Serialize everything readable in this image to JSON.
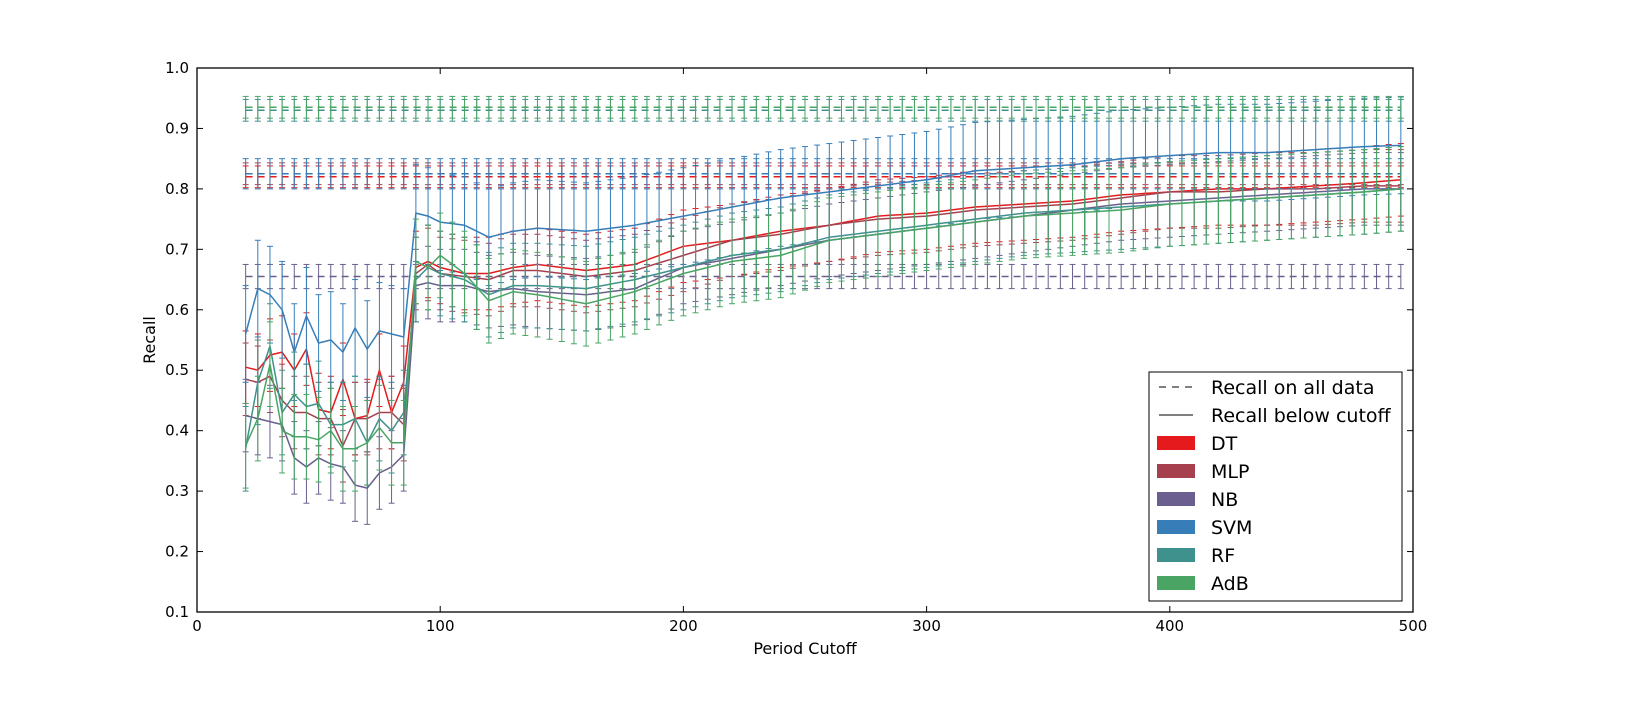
{
  "chart_data": {
    "type": "line",
    "title": "",
    "xlabel": "Period Cutoff",
    "ylabel": "Recall",
    "xlim": [
      0,
      500
    ],
    "ylim": [
      0.1,
      1.0
    ],
    "xticks": [
      "0",
      "100",
      "200",
      "300",
      "400",
      "500"
    ],
    "yticks": [
      "0.1",
      "0.2",
      "0.3",
      "0.4",
      "0.5",
      "0.6",
      "0.7",
      "0.8",
      "0.9",
      "1.0"
    ],
    "grid": false,
    "legend_position": "lower-right",
    "legend_style_entries": [
      {
        "label": "Recall on all data",
        "style": "dashed"
      },
      {
        "label": "Recall below cutoff",
        "style": "solid"
      }
    ],
    "x": [
      20,
      25,
      30,
      35,
      40,
      45,
      50,
      55,
      60,
      65,
      70,
      75,
      80,
      85,
      90,
      95,
      100,
      105,
      110,
      115,
      120,
      125,
      130,
      135,
      140,
      145,
      150,
      155,
      160,
      165,
      170,
      175,
      180,
      185,
      190,
      195,
      200,
      205,
      210,
      215,
      220,
      225,
      230,
      235,
      240,
      245,
      250,
      255,
      260,
      265,
      270,
      275,
      280,
      285,
      290,
      295,
      300,
      305,
      310,
      315,
      320,
      325,
      330,
      335,
      340,
      345,
      350,
      355,
      360,
      365,
      370,
      375,
      380,
      385,
      390,
      395,
      400,
      405,
      410,
      415,
      420,
      425,
      430,
      435,
      440,
      445,
      450,
      455,
      460,
      465,
      470,
      475,
      480,
      485,
      490,
      495
    ],
    "series": [
      {
        "name": "DT",
        "color": "#e41a1c",
        "err_all": 0.018,
        "err_below": 0.06,
        "all_anchors": [
          [
            20,
            0.82
          ],
          [
            500,
            0.82
          ]
        ],
        "below_anchors": [
          [
            20,
            0.505
          ],
          [
            25,
            0.5
          ],
          [
            30,
            0.525
          ],
          [
            35,
            0.53
          ],
          [
            40,
            0.5
          ],
          [
            45,
            0.535
          ],
          [
            50,
            0.435
          ],
          [
            55,
            0.43
          ],
          [
            60,
            0.485
          ],
          [
            65,
            0.42
          ],
          [
            70,
            0.425
          ],
          [
            75,
            0.5
          ],
          [
            80,
            0.43
          ],
          [
            85,
            0.48
          ],
          [
            90,
            0.67
          ],
          [
            95,
            0.68
          ],
          [
            100,
            0.67
          ],
          [
            110,
            0.66
          ],
          [
            120,
            0.66
          ],
          [
            130,
            0.67
          ],
          [
            140,
            0.675
          ],
          [
            160,
            0.665
          ],
          [
            180,
            0.675
          ],
          [
            200,
            0.705
          ],
          [
            220,
            0.715
          ],
          [
            240,
            0.73
          ],
          [
            260,
            0.74
          ],
          [
            280,
            0.755
          ],
          [
            300,
            0.76
          ],
          [
            320,
            0.77
          ],
          [
            340,
            0.775
          ],
          [
            360,
            0.78
          ],
          [
            380,
            0.79
          ],
          [
            400,
            0.795
          ],
          [
            420,
            0.8
          ],
          [
            440,
            0.8
          ],
          [
            460,
            0.805
          ],
          [
            480,
            0.81
          ],
          [
            495,
            0.815
          ]
        ]
      },
      {
        "name": "MLP",
        "color": "#a6404f",
        "err_all": 0.018,
        "err_below": 0.06,
        "all_anchors": [
          [
            20,
            0.825
          ],
          [
            500,
            0.825
          ]
        ],
        "below_anchors": [
          [
            20,
            0.485
          ],
          [
            25,
            0.48
          ],
          [
            30,
            0.49
          ],
          [
            35,
            0.45
          ],
          [
            40,
            0.43
          ],
          [
            45,
            0.43
          ],
          [
            50,
            0.42
          ],
          [
            55,
            0.42
          ],
          [
            60,
            0.375
          ],
          [
            65,
            0.42
          ],
          [
            70,
            0.42
          ],
          [
            75,
            0.43
          ],
          [
            80,
            0.43
          ],
          [
            85,
            0.41
          ],
          [
            90,
            0.66
          ],
          [
            95,
            0.675
          ],
          [
            100,
            0.66
          ],
          [
            110,
            0.655
          ],
          [
            120,
            0.65
          ],
          [
            130,
            0.665
          ],
          [
            140,
            0.665
          ],
          [
            160,
            0.655
          ],
          [
            180,
            0.665
          ],
          [
            200,
            0.69
          ],
          [
            220,
            0.715
          ],
          [
            240,
            0.725
          ],
          [
            260,
            0.74
          ],
          [
            280,
            0.75
          ],
          [
            300,
            0.755
          ],
          [
            320,
            0.765
          ],
          [
            340,
            0.77
          ],
          [
            360,
            0.775
          ],
          [
            380,
            0.785
          ],
          [
            400,
            0.795
          ],
          [
            420,
            0.795
          ],
          [
            440,
            0.8
          ],
          [
            460,
            0.8
          ],
          [
            480,
            0.805
          ],
          [
            495,
            0.805
          ]
        ]
      },
      {
        "name": "NB",
        "color": "#6a5f8e",
        "err_all": 0.02,
        "err_below": 0.06,
        "all_anchors": [
          [
            20,
            0.655
          ],
          [
            500,
            0.655
          ]
        ],
        "below_anchors": [
          [
            20,
            0.425
          ],
          [
            25,
            0.42
          ],
          [
            30,
            0.415
          ],
          [
            35,
            0.41
          ],
          [
            40,
            0.355
          ],
          [
            45,
            0.34
          ],
          [
            50,
            0.355
          ],
          [
            55,
            0.345
          ],
          [
            60,
            0.34
          ],
          [
            65,
            0.31
          ],
          [
            70,
            0.305
          ],
          [
            75,
            0.33
          ],
          [
            80,
            0.34
          ],
          [
            85,
            0.36
          ],
          [
            90,
            0.64
          ],
          [
            95,
            0.645
          ],
          [
            100,
            0.64
          ],
          [
            110,
            0.64
          ],
          [
            120,
            0.63
          ],
          [
            130,
            0.635
          ],
          [
            140,
            0.63
          ],
          [
            160,
            0.625
          ],
          [
            180,
            0.635
          ],
          [
            200,
            0.67
          ],
          [
            220,
            0.685
          ],
          [
            240,
            0.7
          ],
          [
            260,
            0.715
          ],
          [
            280,
            0.725
          ],
          [
            300,
            0.735
          ],
          [
            320,
            0.745
          ],
          [
            340,
            0.755
          ],
          [
            360,
            0.765
          ],
          [
            380,
            0.775
          ],
          [
            400,
            0.78
          ],
          [
            420,
            0.785
          ],
          [
            440,
            0.79
          ],
          [
            460,
            0.795
          ],
          [
            480,
            0.8
          ],
          [
            495,
            0.8
          ]
        ]
      },
      {
        "name": "SVM",
        "color": "#377eb8",
        "err_all": 0.025,
        "err_below": 0.08,
        "all_anchors": [
          [
            20,
            0.825
          ],
          [
            500,
            0.825
          ]
        ],
        "below_anchors": [
          [
            20,
            0.56
          ],
          [
            25,
            0.635
          ],
          [
            30,
            0.625
          ],
          [
            35,
            0.6
          ],
          [
            40,
            0.53
          ],
          [
            45,
            0.59
          ],
          [
            50,
            0.545
          ],
          [
            55,
            0.55
          ],
          [
            60,
            0.53
          ],
          [
            65,
            0.57
          ],
          [
            70,
            0.535
          ],
          [
            75,
            0.565
          ],
          [
            80,
            0.56
          ],
          [
            85,
            0.555
          ],
          [
            90,
            0.76
          ],
          [
            95,
            0.755
          ],
          [
            100,
            0.745
          ],
          [
            110,
            0.74
          ],
          [
            120,
            0.72
          ],
          [
            130,
            0.73
          ],
          [
            140,
            0.735
          ],
          [
            160,
            0.73
          ],
          [
            180,
            0.74
          ],
          [
            200,
            0.755
          ],
          [
            220,
            0.77
          ],
          [
            240,
            0.785
          ],
          [
            260,
            0.795
          ],
          [
            280,
            0.805
          ],
          [
            300,
            0.815
          ],
          [
            320,
            0.83
          ],
          [
            340,
            0.835
          ],
          [
            360,
            0.84
          ],
          [
            380,
            0.85
          ],
          [
            400,
            0.855
          ],
          [
            420,
            0.86
          ],
          [
            440,
            0.86
          ],
          [
            460,
            0.865
          ],
          [
            480,
            0.87
          ],
          [
            495,
            0.872
          ]
        ]
      },
      {
        "name": "RF",
        "color": "#3f918e",
        "err_all": 0.018,
        "err_below": 0.07,
        "all_anchors": [
          [
            20,
            0.93
          ],
          [
            500,
            0.93
          ]
        ],
        "below_anchors": [
          [
            20,
            0.37
          ],
          [
            25,
            0.48
          ],
          [
            30,
            0.54
          ],
          [
            35,
            0.43
          ],
          [
            40,
            0.46
          ],
          [
            45,
            0.44
          ],
          [
            50,
            0.445
          ],
          [
            55,
            0.41
          ],
          [
            60,
            0.41
          ],
          [
            65,
            0.42
          ],
          [
            70,
            0.38
          ],
          [
            75,
            0.42
          ],
          [
            80,
            0.4
          ],
          [
            85,
            0.43
          ],
          [
            90,
            0.65
          ],
          [
            95,
            0.67
          ],
          [
            100,
            0.66
          ],
          [
            110,
            0.65
          ],
          [
            120,
            0.625
          ],
          [
            130,
            0.64
          ],
          [
            140,
            0.64
          ],
          [
            160,
            0.635
          ],
          [
            180,
            0.65
          ],
          [
            200,
            0.67
          ],
          [
            220,
            0.69
          ],
          [
            240,
            0.7
          ],
          [
            260,
            0.72
          ],
          [
            280,
            0.73
          ],
          [
            300,
            0.74
          ],
          [
            320,
            0.75
          ],
          [
            340,
            0.76
          ],
          [
            360,
            0.765
          ],
          [
            380,
            0.77
          ],
          [
            400,
            0.775
          ],
          [
            420,
            0.78
          ],
          [
            440,
            0.785
          ],
          [
            460,
            0.79
          ],
          [
            480,
            0.795
          ],
          [
            495,
            0.8
          ]
        ]
      },
      {
        "name": "AdB",
        "color": "#4aa564",
        "err_all": 0.018,
        "err_below": 0.07,
        "all_anchors": [
          [
            20,
            0.935
          ],
          [
            500,
            0.935
          ]
        ],
        "below_anchors": [
          [
            20,
            0.375
          ],
          [
            25,
            0.42
          ],
          [
            30,
            0.51
          ],
          [
            35,
            0.4
          ],
          [
            40,
            0.39
          ],
          [
            45,
            0.39
          ],
          [
            50,
            0.385
          ],
          [
            55,
            0.4
          ],
          [
            60,
            0.37
          ],
          [
            65,
            0.37
          ],
          [
            70,
            0.38
          ],
          [
            75,
            0.405
          ],
          [
            80,
            0.38
          ],
          [
            85,
            0.38
          ],
          [
            90,
            0.68
          ],
          [
            95,
            0.67
          ],
          [
            100,
            0.69
          ],
          [
            110,
            0.66
          ],
          [
            120,
            0.615
          ],
          [
            130,
            0.63
          ],
          [
            140,
            0.625
          ],
          [
            160,
            0.61
          ],
          [
            180,
            0.63
          ],
          [
            200,
            0.66
          ],
          [
            220,
            0.68
          ],
          [
            240,
            0.69
          ],
          [
            260,
            0.715
          ],
          [
            280,
            0.725
          ],
          [
            300,
            0.735
          ],
          [
            320,
            0.745
          ],
          [
            340,
            0.755
          ],
          [
            360,
            0.76
          ],
          [
            380,
            0.765
          ],
          [
            400,
            0.775
          ],
          [
            420,
            0.78
          ],
          [
            440,
            0.785
          ],
          [
            460,
            0.79
          ],
          [
            480,
            0.795
          ],
          [
            495,
            0.8
          ]
        ]
      }
    ]
  }
}
